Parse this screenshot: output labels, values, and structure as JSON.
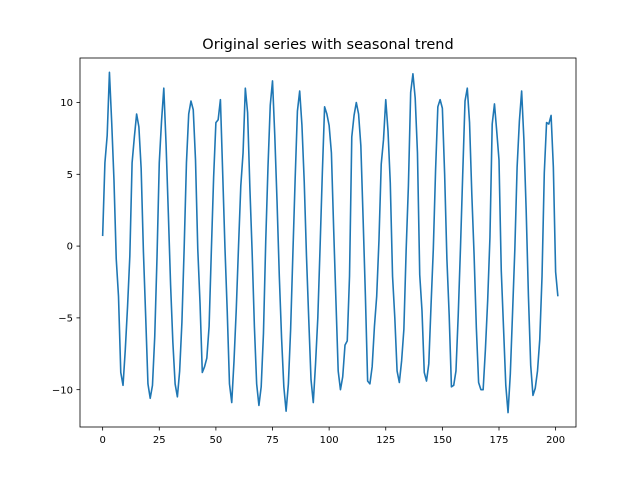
{
  "chart_data": {
    "type": "line",
    "title": "Original series with seasonal trend",
    "xlabel": "",
    "ylabel": "",
    "xlim": [
      -10,
      209
    ],
    "ylim": [
      -12.6,
      13.1
    ],
    "xticks": [
      0,
      25,
      50,
      75,
      100,
      125,
      150,
      175,
      200
    ],
    "yticks": [
      -10,
      -5,
      0,
      5,
      10
    ],
    "xtick_labels": [
      "0",
      "25",
      "50",
      "75",
      "100",
      "125",
      "150",
      "175",
      "200"
    ],
    "ytick_labels": [
      "−10",
      "−5",
      "0",
      "5",
      "10"
    ],
    "grid": false,
    "colors": {
      "line": "#1f77b4",
      "axes": "#000000",
      "background": "#ffffff"
    },
    "series": [
      {
        "x_start": 0,
        "x_step": 1,
        "values": [
          0.7,
          5.8,
          7.7,
          12.1,
          8.6,
          4.6,
          -0.9,
          -3.5,
          -8.8,
          -9.7,
          -7.2,
          -4.2,
          -0.7,
          5.8,
          7.6,
          9.2,
          8.3,
          5.4,
          -0.4,
          -4.9,
          -9.6,
          -10.6,
          -9.7,
          -6.3,
          -0.8,
          5.8,
          8.7,
          11.0,
          7.1,
          2.3,
          -2.7,
          -6.7,
          -9.6,
          -10.5,
          -8.7,
          -5.3,
          -0.1,
          5.8,
          9.2,
          10.1,
          9.5,
          6.0,
          -0.2,
          -4.0,
          -8.8,
          -8.4,
          -7.8,
          -5.6,
          -0.3,
          4.8,
          8.6,
          8.8,
          10.2,
          5.1,
          -0.1,
          -4.5,
          -9.6,
          -10.9,
          -8.0,
          -4.4,
          0.0,
          4.2,
          6.5,
          11.0,
          9.3,
          4.1,
          -0.4,
          -5.6,
          -9.6,
          -11.1,
          -9.8,
          -6.1,
          0.3,
          5.5,
          9.8,
          11.5,
          7.7,
          3.1,
          -2.1,
          -6.4,
          -9.8,
          -11.5,
          -9.6,
          -5.8,
          -0.5,
          4.7,
          9.4,
          10.8,
          8.4,
          4.5,
          -0.7,
          -5.1,
          -9.3,
          -10.9,
          -8.2,
          -5.0,
          -0.1,
          5.1,
          9.7,
          9.2,
          8.4,
          6.5,
          1.2,
          -3.8,
          -8.7,
          -10.0,
          -9.1,
          -6.9,
          -6.6,
          -2.1,
          7.6,
          9.1,
          10.0,
          9.2,
          7.0,
          1.9,
          -3.4,
          -9.4,
          -9.6,
          -8.4,
          -5.6,
          -3.5,
          0.4,
          5.7,
          7.4,
          10.2,
          8.0,
          4.4,
          -2.1,
          -5.0,
          -8.7,
          -9.5,
          -8.0,
          -5.8,
          -0.3,
          4.2,
          10.7,
          12.0,
          10.3,
          6.5,
          -2.0,
          -4.5,
          -8.8,
          -9.4,
          -8.2,
          -4.1,
          -0.2,
          5.3,
          9.7,
          10.2,
          9.6,
          5.0,
          -0.9,
          -4.8,
          -9.8,
          -9.7,
          -8.7,
          -4.8,
          -0.1,
          5.1,
          10.1,
          11.0,
          8.6,
          3.6,
          -0.6,
          -5.7,
          -9.5,
          -10.0,
          -10.0,
          -7.2,
          -3.8,
          0.6,
          8.5,
          9.9,
          8.0,
          6.0,
          -1.7,
          -5.7,
          -9.7,
          -11.6,
          -8.9,
          -4.6,
          -0.2,
          5.5,
          8.7,
          10.8,
          7.4,
          2.5,
          -3.5,
          -8.3,
          -10.4,
          -9.9,
          -8.7,
          -6.5,
          -2.1,
          5.1,
          8.6,
          8.5,
          9.1,
          5.5,
          -1.8,
          -3.5
        ]
      }
    ]
  }
}
